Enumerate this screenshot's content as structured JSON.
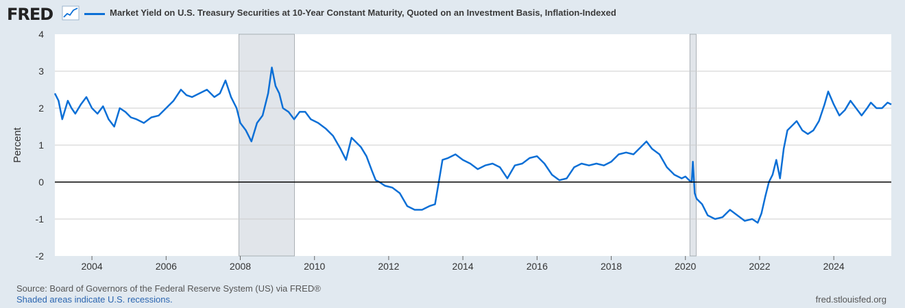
{
  "header": {
    "logo": "FRED",
    "series_title": "Market Yield on U.S. Treasury Securities at 10-Year Constant Maturity, Quoted on an Investment Basis, Inflation-Indexed"
  },
  "footer": {
    "source": "Source: Board of Governors of the Federal Reserve System (US) via FRED®",
    "recession_note": "Shaded areas indicate U.S. recessions.",
    "url": "fred.stlouisfed.org"
  },
  "colors": {
    "background": "#e1e9f0",
    "plot_background": "#ffffff",
    "series": "#0b6fd6",
    "recession": "#e1e5ea",
    "gridline": "#cccccc",
    "zero_line": "#000000"
  },
  "chart_data": {
    "type": "line",
    "title": "",
    "xlabel": "",
    "ylabel": "Percent",
    "xlim": [
      2003.0,
      2025.55
    ],
    "ylim": [
      -2,
      4
    ],
    "x_ticks": [
      "2004",
      "2006",
      "2008",
      "2010",
      "2012",
      "2014",
      "2016",
      "2018",
      "2020",
      "2022",
      "2024"
    ],
    "y_ticks": [
      "-2",
      "-1",
      "0",
      "1",
      "2",
      "3",
      "4"
    ],
    "grid": "horizontal",
    "zero_line": true,
    "recessions": [
      [
        2007.96,
        2009.46
      ],
      [
        2020.12,
        2020.29
      ]
    ],
    "series": [
      {
        "name": "Market Yield on U.S. Treasury Securities at 10-Year Constant Maturity, Quoted on an Investment Basis, Inflation-Indexed",
        "x": [
          2003.0,
          2003.1,
          2003.2,
          2003.35,
          2003.45,
          2003.55,
          2003.7,
          2003.85,
          2004.0,
          2004.15,
          2004.3,
          2004.45,
          2004.6,
          2004.75,
          2004.9,
          2005.05,
          2005.2,
          2005.4,
          2005.6,
          2005.8,
          2006.0,
          2006.2,
          2006.4,
          2006.55,
          2006.7,
          2006.9,
          2007.1,
          2007.3,
          2007.45,
          2007.6,
          2007.75,
          2007.9,
          2008.0,
          2008.15,
          2008.3,
          2008.45,
          2008.6,
          2008.75,
          2008.85,
          2008.95,
          2009.05,
          2009.15,
          2009.3,
          2009.45,
          2009.6,
          2009.75,
          2009.9,
          2010.1,
          2010.3,
          2010.5,
          2010.7,
          2010.85,
          2011.0,
          2011.1,
          2011.25,
          2011.4,
          2011.55,
          2011.65,
          2011.75,
          2011.9,
          2012.1,
          2012.3,
          2012.5,
          2012.7,
          2012.9,
          2013.1,
          2013.25,
          2013.35,
          2013.45,
          2013.6,
          2013.8,
          2014.0,
          2014.2,
          2014.4,
          2014.6,
          2014.8,
          2015.0,
          2015.2,
          2015.4,
          2015.6,
          2015.8,
          2016.0,
          2016.2,
          2016.4,
          2016.6,
          2016.8,
          2017.0,
          2017.2,
          2017.4,
          2017.6,
          2017.8,
          2018.0,
          2018.2,
          2018.4,
          2018.6,
          2018.8,
          2018.95,
          2019.1,
          2019.3,
          2019.5,
          2019.7,
          2019.9,
          2020.0,
          2020.1,
          2020.17,
          2020.2,
          2020.25,
          2020.3,
          2020.45,
          2020.6,
          2020.8,
          2021.0,
          2021.2,
          2021.4,
          2021.6,
          2021.8,
          2021.95,
          2022.05,
          2022.15,
          2022.25,
          2022.35,
          2022.45,
          2022.55,
          2022.65,
          2022.75,
          2022.85,
          2023.0,
          2023.15,
          2023.3,
          2023.45,
          2023.6,
          2023.75,
          2023.85,
          2024.0,
          2024.15,
          2024.3,
          2024.45,
          2024.6,
          2024.75,
          2024.9,
          2025.0,
          2025.15,
          2025.3,
          2025.45,
          2025.55
        ],
        "y": [
          2.4,
          2.2,
          1.7,
          2.2,
          2.0,
          1.85,
          2.1,
          2.3,
          2.0,
          1.85,
          2.05,
          1.7,
          1.5,
          2.0,
          1.9,
          1.75,
          1.7,
          1.6,
          1.75,
          1.8,
          2.0,
          2.2,
          2.5,
          2.35,
          2.3,
          2.4,
          2.5,
          2.3,
          2.4,
          2.75,
          2.3,
          2.0,
          1.6,
          1.4,
          1.1,
          1.6,
          1.8,
          2.4,
          3.1,
          2.6,
          2.4,
          2.0,
          1.9,
          1.7,
          1.9,
          1.9,
          1.7,
          1.6,
          1.45,
          1.25,
          0.9,
          0.6,
          1.2,
          1.1,
          0.95,
          0.7,
          0.3,
          0.05,
          0.0,
          -0.1,
          -0.15,
          -0.3,
          -0.65,
          -0.75,
          -0.75,
          -0.65,
          -0.6,
          0.0,
          0.6,
          0.65,
          0.75,
          0.6,
          0.5,
          0.35,
          0.45,
          0.5,
          0.4,
          0.1,
          0.45,
          0.5,
          0.65,
          0.7,
          0.5,
          0.2,
          0.05,
          0.1,
          0.4,
          0.5,
          0.45,
          0.5,
          0.45,
          0.55,
          0.75,
          0.8,
          0.75,
          0.95,
          1.1,
          0.9,
          0.75,
          0.4,
          0.2,
          0.1,
          0.15,
          0.05,
          0.0,
          0.55,
          -0.3,
          -0.45,
          -0.6,
          -0.9,
          -1.0,
          -0.95,
          -0.75,
          -0.9,
          -1.05,
          -1.0,
          -1.1,
          -0.85,
          -0.4,
          0.0,
          0.2,
          0.6,
          0.1,
          0.9,
          1.4,
          1.5,
          1.65,
          1.4,
          1.3,
          1.4,
          1.65,
          2.1,
          2.45,
          2.1,
          1.8,
          1.95,
          2.2,
          2.0,
          1.8,
          2.0,
          2.15,
          2.0,
          2.0,
          2.15,
          2.1
        ]
      }
    ]
  }
}
